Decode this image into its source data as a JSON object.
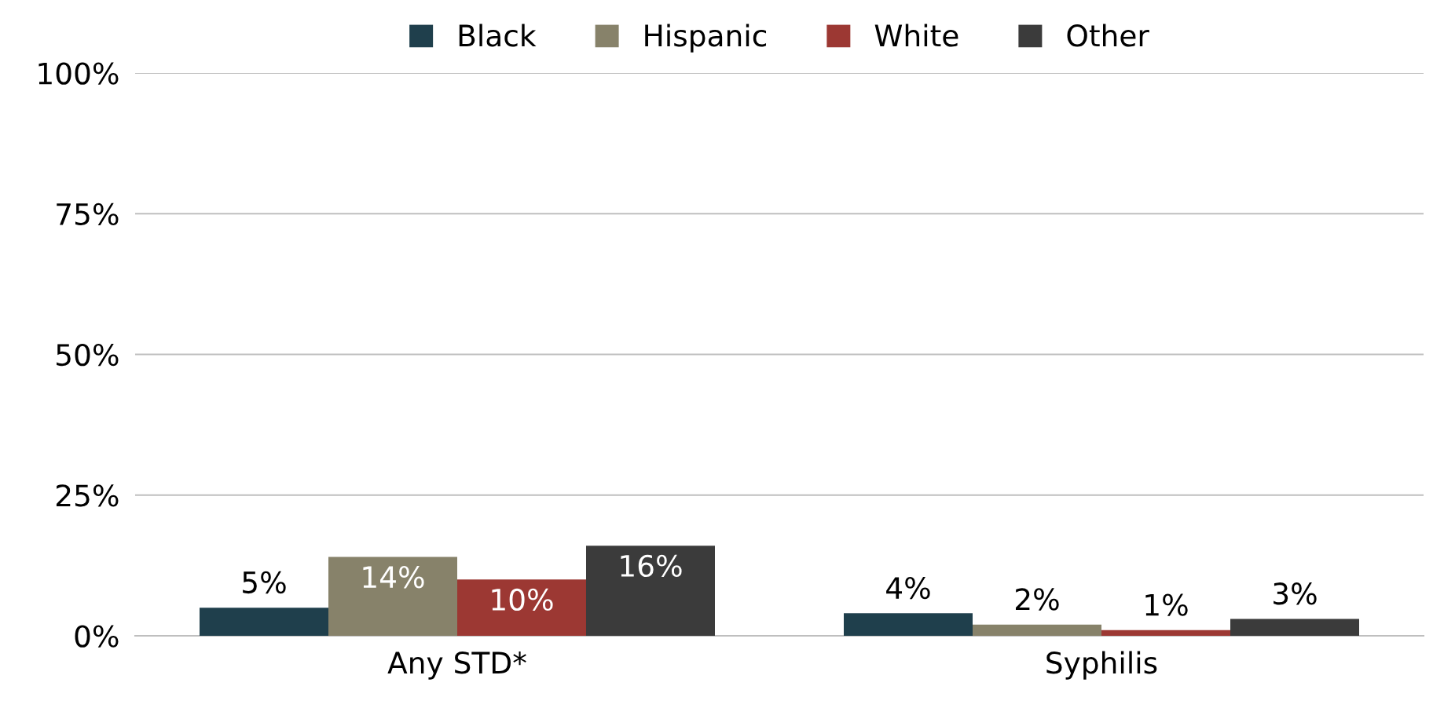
{
  "chart_data": {
    "type": "bar",
    "categories": [
      "Any STD*",
      "Syphilis"
    ],
    "series": [
      {
        "name": "Black",
        "color": "#1f3f4c",
        "values": [
          5,
          4
        ],
        "value_labels": [
          "5%",
          "4%"
        ]
      },
      {
        "name": "Hispanic",
        "color": "#87826a",
        "values": [
          14,
          2
        ],
        "value_labels": [
          "14%",
          "2%"
        ]
      },
      {
        "name": "White",
        "color": "#9c3833",
        "values": [
          10,
          1
        ],
        "value_labels": [
          "10%",
          "1%"
        ]
      },
      {
        "name": "Other",
        "color": "#3b3b3b",
        "values": [
          16,
          3
        ],
        "value_labels": [
          "16%",
          "3%"
        ]
      }
    ],
    "ylim": [
      0,
      100
    ],
    "yticks": [
      {
        "value": 0,
        "label": "0%"
      },
      {
        "value": 25,
        "label": "25%"
      },
      {
        "value": 50,
        "label": "50%"
      },
      {
        "value": 75,
        "label": "75%"
      },
      {
        "value": 100,
        "label": "100%"
      }
    ],
    "grid": "y",
    "legend": "top"
  }
}
